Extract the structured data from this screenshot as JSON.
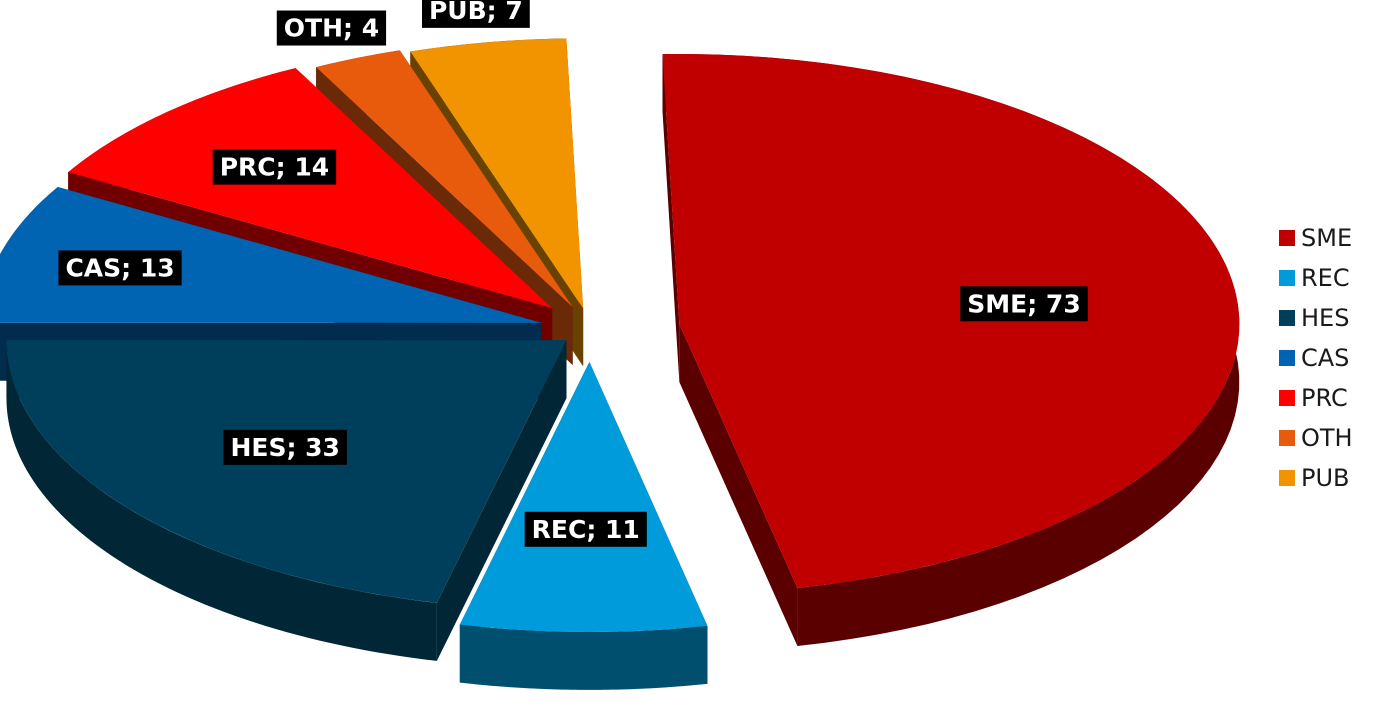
{
  "chart_data": {
    "type": "pie",
    "title": "",
    "exploded": true,
    "three_d": true,
    "legend_position": "right",
    "label_format": "{category}; {value}",
    "slices": [
      {
        "category": "SME",
        "value": 73,
        "label": "SME; 73",
        "color": "#C00000",
        "side_color": "#5a0000"
      },
      {
        "category": "REC",
        "value": 11,
        "label": "REC; 11",
        "color": "#009BDB",
        "side_color": "#004f6e"
      },
      {
        "category": "HES",
        "value": 33,
        "label": "HES; 33",
        "color": "#003F5C",
        "side_color": "#012636"
      },
      {
        "category": "CAS",
        "value": 13,
        "label": "CAS; 13",
        "color": "#0064B2",
        "side_color": "#022c4e"
      },
      {
        "category": "PRC",
        "value": 14,
        "label": "PRC; 14",
        "color": "#FF0000",
        "side_color": "#700000"
      },
      {
        "category": "OTH",
        "value": 4,
        "label": "OTH; 4",
        "color": "#E85A0C",
        "side_color": "#6a2a08"
      },
      {
        "category": "PUB",
        "value": 7,
        "label": "PUB; 7",
        "color": "#F29400",
        "side_color": "#6a4200"
      }
    ]
  }
}
